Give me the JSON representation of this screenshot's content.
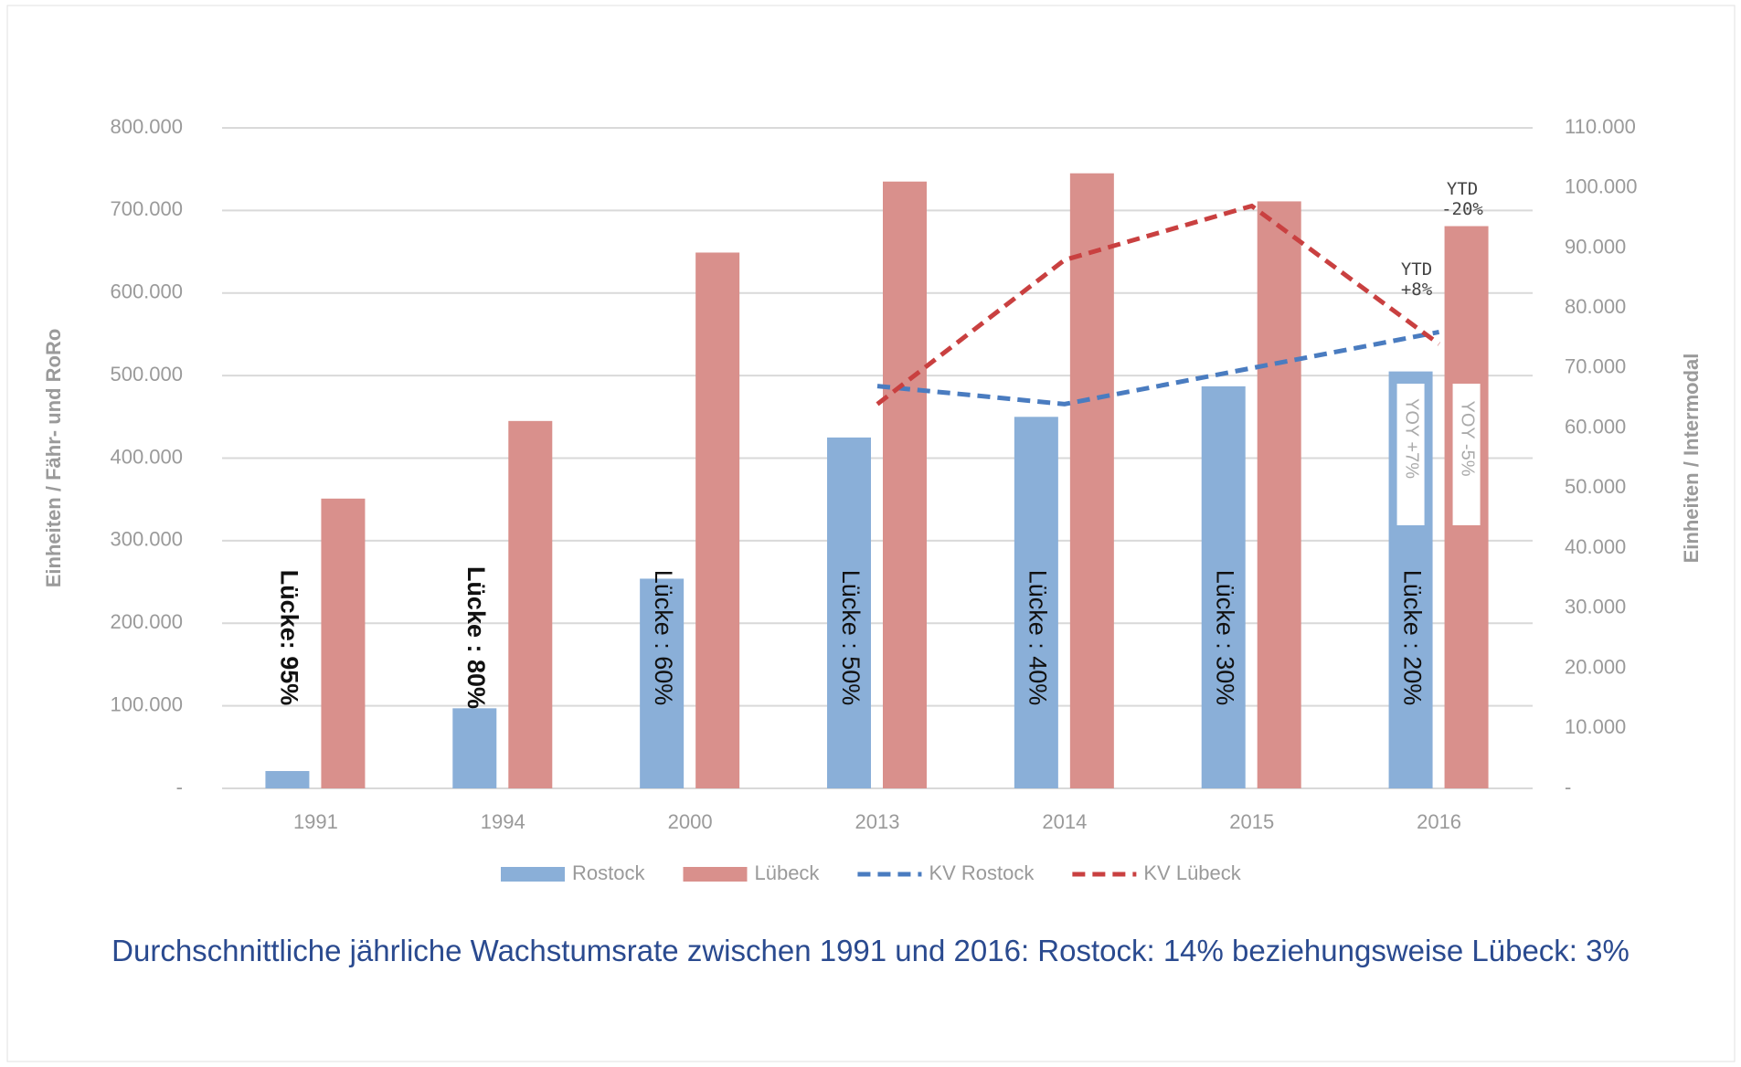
{
  "chart_data": {
    "type": "bar",
    "categories": [
      "1991",
      "1994",
      "2000",
      "2013",
      "2014",
      "2015",
      "2016"
    ],
    "series": [
      {
        "name": "Rostock",
        "color": "#8aafd8",
        "values": [
          21000,
          97000,
          254000,
          425000,
          450000,
          487000,
          505000
        ]
      },
      {
        "name": "Lübeck",
        "color": "#d9908c",
        "values": [
          351000,
          445000,
          649000,
          735000,
          745000,
          711000,
          681000
        ]
      },
      {
        "name": "KV Rostock",
        "color": "#4a7cc0",
        "axis": "y2",
        "values": [
          null,
          null,
          null,
          67000,
          64000,
          70000,
          76000
        ]
      },
      {
        "name": "KV Lübeck",
        "color": "#c94040",
        "axis": "y2",
        "values": [
          null,
          null,
          null,
          64000,
          88000,
          97000,
          74000
        ]
      }
    ],
    "ylim": [
      0,
      800000
    ],
    "yticks": [
      {
        "value": 0,
        "label": "-"
      },
      {
        "value": 100000,
        "label": "100.000"
      },
      {
        "value": 200000,
        "label": "200.000"
      },
      {
        "value": 300000,
        "label": "300.000"
      },
      {
        "value": 400000,
        "label": "400.000"
      },
      {
        "value": 500000,
        "label": "500.000"
      },
      {
        "value": 600000,
        "label": "600.000"
      },
      {
        "value": 700000,
        "label": "700.000"
      },
      {
        "value": 800000,
        "label": "800.000"
      }
    ],
    "y2lim": [
      0,
      110000
    ],
    "y2ticks": [
      {
        "value": 0,
        "label": "-"
      },
      {
        "value": 10000,
        "label": "10.000"
      },
      {
        "value": 20000,
        "label": "20.000"
      },
      {
        "value": 30000,
        "label": "30.000"
      },
      {
        "value": 40000,
        "label": "40.000"
      },
      {
        "value": 50000,
        "label": "50.000"
      },
      {
        "value": 60000,
        "label": "60.000"
      },
      {
        "value": 70000,
        "label": "70.000"
      },
      {
        "value": 80000,
        "label": "80.000"
      },
      {
        "value": 90000,
        "label": "90.000"
      },
      {
        "value": 100000,
        "label": "100.000"
      },
      {
        "value": 110000,
        "label": "110.000"
      }
    ],
    "y_label": "Einheiten / Fähr- und RoRo",
    "y2_label": "Einheiten / Intermodal",
    "gap_labels": [
      "Lücke: 95%",
      "Lücke : 80%",
      "Lücke : 60%",
      "Lücke : 50%",
      "Lücke : 40%",
      "Lücke : 30%",
      "Lücke : 20%"
    ],
    "annotations": {
      "ytd_luebeck": "YTD -20%",
      "ytd_rostock": "YTD +8%",
      "yoy_rostock": "YOY +7%",
      "yoy_luebeck": "YOY -5%"
    },
    "grid": true,
    "legend": "bottom",
    "footer": "Durchschnittliche jährliche Wachstumsrate zwischen 1991 und 2016: Rostock: 14% beziehungsweise Lübeck: 3%"
  }
}
